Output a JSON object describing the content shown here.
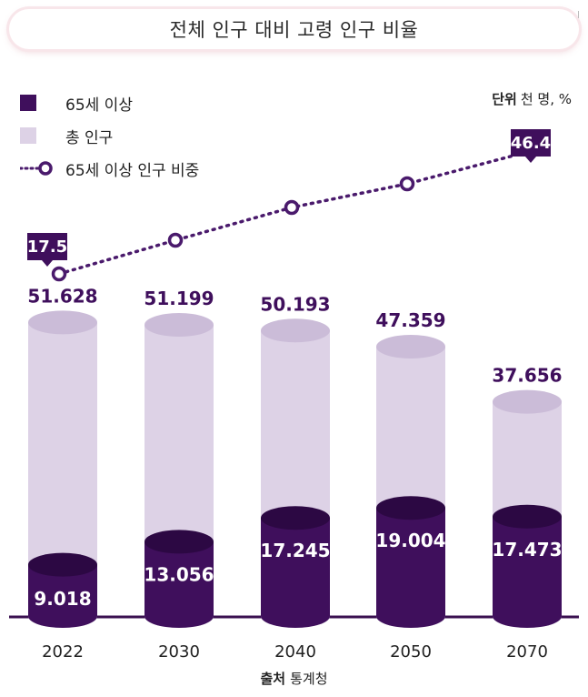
{
  "title": "전체 인구 대비 고령 인구 비율",
  "legend": {
    "aged": "65세 이상",
    "total": "총 인구",
    "share": "65세 이상 인구 비중"
  },
  "unit": {
    "label": "단위",
    "value": "천 명, %"
  },
  "source": {
    "label": "출처",
    "value": "통계청"
  },
  "colors": {
    "aged": "#3f0f5c",
    "total": "#ddd2e6",
    "line": "#4a1a6c",
    "label": "#3f0f5c"
  },
  "chart_data": {
    "type": "bar",
    "categories": [
      "2022",
      "2030",
      "2040",
      "2050",
      "2070"
    ],
    "series": [
      {
        "name": "총 인구",
        "values": [
          "51.628",
          "51.199",
          "50.193",
          "47.359",
          "37.656"
        ]
      },
      {
        "name": "65세 이상",
        "values": [
          "9.018",
          "13.056",
          "17.245",
          "19.004",
          "17.473"
        ]
      },
      {
        "name": "65세 이상 인구 비중",
        "values": [
          17.5,
          null,
          null,
          null,
          46.4
        ]
      }
    ]
  }
}
